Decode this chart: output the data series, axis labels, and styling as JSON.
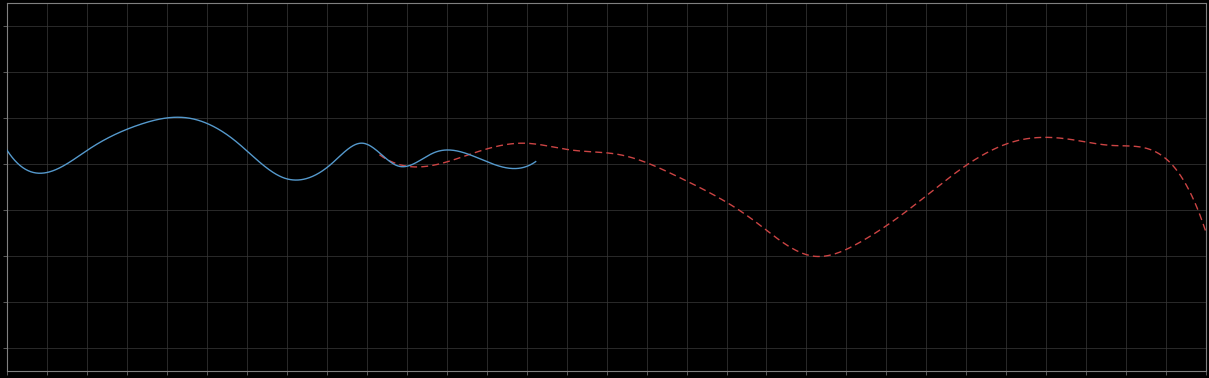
{
  "background_color": "#000000",
  "plot_bg_color": "#000000",
  "grid_color": "#3a3a3a",
  "spine_color": "#808080",
  "tick_color": "#808080",
  "blue_line_color": "#5599cc",
  "red_line_color": "#cc4444",
  "n_points": 500,
  "xlim": [
    0,
    499
  ],
  "ylim_bottom": -4.5,
  "ylim_top": 3.5,
  "grid_nx": 30,
  "grid_ny": 8,
  "blue_end_x": 220,
  "red_start_x": 155
}
